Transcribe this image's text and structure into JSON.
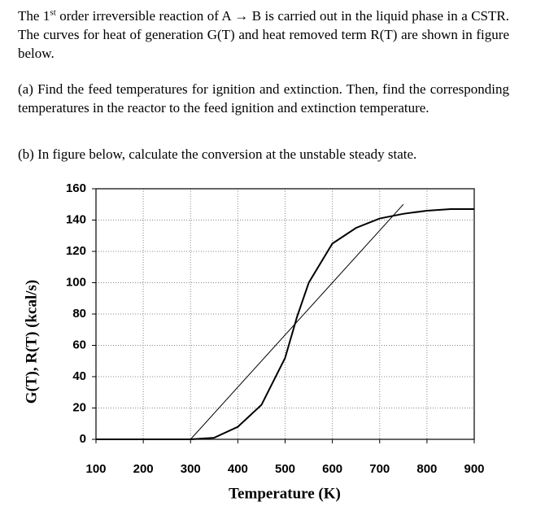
{
  "text": {
    "intro_start": "The 1",
    "intro_sup": "st",
    "intro_end": " order irreversible reaction of A → B is carried out in the liquid phase in a CSTR. The curves for heat of generation G(T) and heat removed term R(T) are shown in figure below.",
    "part_a": "(a) Find the feed temperatures for ignition and extinction. Then, find the corresponding temperatures in the reactor to the feed ignition and extinction temperature.",
    "part_b": "(b) In figure below, calculate the conversion at the unstable steady state."
  },
  "chart_data": {
    "type": "line",
    "x_label": "Temperature (K)",
    "y_label": "G(T), R(T) (kcal/s)",
    "xlim": [
      100,
      900
    ],
    "xticks": [
      100,
      200,
      300,
      400,
      500,
      600,
      700,
      800,
      900
    ],
    "ylim": [
      0,
      160
    ],
    "yticks": [
      0,
      20,
      40,
      60,
      80,
      100,
      120,
      140,
      160
    ],
    "grid": true,
    "series": [
      {
        "name": "G(T)",
        "color": "#000000",
        "x": [
          100,
          300,
          350,
          400,
          450,
          500,
          525,
          550,
          600,
          650,
          700,
          750,
          800,
          850,
          900
        ],
        "values": [
          0,
          0,
          1,
          8,
          22,
          52,
          78,
          100,
          125,
          135,
          141,
          144,
          146,
          147,
          147
        ]
      },
      {
        "name": "R(T)",
        "color": "#000000",
        "x": [
          300,
          750
        ],
        "values": [
          0,
          150
        ]
      }
    ]
  }
}
